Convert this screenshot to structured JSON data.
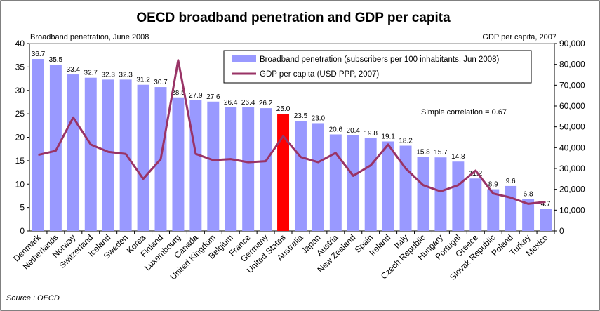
{
  "chart_data": {
    "type": "bar",
    "title": "OECD broadband penetration and GDP per capita",
    "left_axis_label": "Broadband penetration, June 2008",
    "right_axis_label": "GDP per capita, 2007",
    "source": "Source : OECD",
    "annotation": "Simple correlation = 0.67",
    "left_ylim": [
      0,
      40
    ],
    "left_ticks": [
      0,
      5,
      10,
      15,
      20,
      25,
      30,
      35,
      40
    ],
    "right_ylim": [
      0,
      90000
    ],
    "right_ticks": [
      "0",
      "10,000",
      "20,000",
      "30,000",
      "40,000",
      "50,000",
      "60,000",
      "70,000",
      "80,000",
      "90,000"
    ],
    "legend_position": "top-right",
    "highlight_category": "United States",
    "colors": {
      "bar": "#9999ff",
      "highlight_bar": "#ff0000",
      "line": "#993366"
    },
    "categories": [
      "Denmark",
      "Netherlands",
      "Norway",
      "Switzerland",
      "Iceland",
      "Sweden",
      "Korea",
      "Finland",
      "Luxembourg",
      "Canada",
      "United Kingdom",
      "Belgium",
      "France",
      "Germany",
      "United States",
      "Australia",
      "Japan",
      "Austria",
      "New Zealand",
      "Spain",
      "Ireland",
      "Italy",
      "Czech Republic",
      "Hungary",
      "Portugal",
      "Greece",
      "Slovak Republic",
      "Poland",
      "Turkey",
      "Mexico"
    ],
    "series": [
      {
        "name": "Broadband penetration (subscribers per 100 inhabitants, Jun 2008)",
        "type": "bar",
        "axis": "left",
        "values": [
          36.7,
          35.5,
          33.4,
          32.7,
          32.3,
          32.3,
          31.2,
          30.7,
          28.5,
          27.9,
          27.6,
          26.4,
          26.4,
          26.2,
          25.0,
          23.5,
          23.0,
          20.6,
          20.4,
          19.8,
          19.1,
          18.2,
          15.8,
          15.7,
          14.8,
          11.2,
          8.9,
          9.6,
          6.8,
          4.7
        ],
        "labels": [
          "36.7",
          "35.5",
          "33.4",
          "32.7",
          "32.3",
          "32.3",
          "31.2",
          "30.7",
          "28.5",
          "27.9",
          "27.6",
          "26.4",
          "26.4",
          "26.2",
          "25.0",
          "23.5",
          "23.0",
          "20.6",
          "20.4",
          "19.8",
          "19.1",
          "18.2",
          "15.8",
          "15.7",
          "14.8",
          "11.2",
          "8.9",
          "9.6",
          "6.8",
          "4.7"
        ]
      },
      {
        "name": "GDP per capita (USD PPP, 2007)",
        "type": "line",
        "axis": "right",
        "values": [
          36500,
          38500,
          54500,
          41500,
          38000,
          37000,
          25000,
          34500,
          82000,
          37000,
          34000,
          34500,
          33000,
          33500,
          45500,
          35500,
          33000,
          37500,
          26500,
          31500,
          41500,
          30000,
          22000,
          19000,
          22000,
          29000,
          18000,
          16000,
          13000,
          14000
        ]
      }
    ]
  }
}
